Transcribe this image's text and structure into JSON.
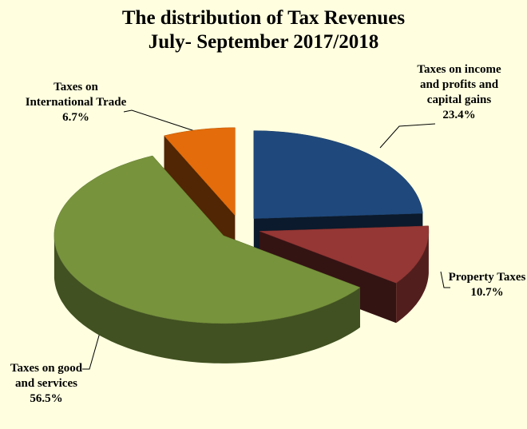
{
  "chart_data": {
    "type": "pie3d",
    "title": "The distribution of Tax Revenues",
    "subtitle": "July- September 2017/2018",
    "categories": [
      "Taxes on income and profits and capital gains",
      "Property Taxes",
      "Taxes on good and services",
      "Taxes on International Trade"
    ],
    "values": [
      23.4,
      10.7,
      56.5,
      6.7
    ],
    "value_labels": [
      "23.4%",
      "10.7%",
      "56.5%",
      "6.7%"
    ],
    "colors": [
      "#1f497d",
      "#953735",
      "#77933c",
      "#e46c0a"
    ]
  }
}
